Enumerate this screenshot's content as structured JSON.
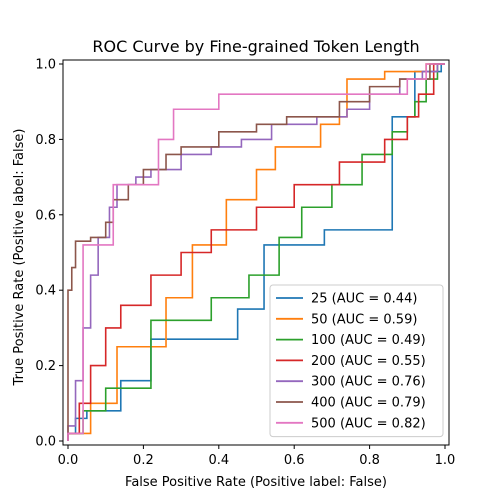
{
  "chart_data": {
    "type": "line",
    "title": "ROC Curve by Fine-grained Token Length",
    "xlabel": "False Positive Rate (Positive label: False)",
    "ylabel": "True Positive Rate (Positive label: False)",
    "xlim": [
      0,
      1
    ],
    "ylim": [
      0,
      1
    ],
    "xticks": [
      "0.0",
      "0.2",
      "0.4",
      "0.6",
      "0.8",
      "1.0"
    ],
    "yticks": [
      "0.0",
      "0.2",
      "0.4",
      "0.6",
      "0.8",
      "1.0"
    ],
    "legend_position": "lower-right",
    "grid": false,
    "series": [
      {
        "name": "25 (AUC = 0.44)",
        "color": "#1f77b4",
        "points": [
          [
            0,
            0
          ],
          [
            0,
            0.02
          ],
          [
            0.02,
            0.02
          ],
          [
            0.02,
            0.06
          ],
          [
            0.05,
            0.06
          ],
          [
            0.05,
            0.08
          ],
          [
            0.14,
            0.08
          ],
          [
            0.14,
            0.16
          ],
          [
            0.22,
            0.16
          ],
          [
            0.22,
            0.27
          ],
          [
            0.45,
            0.27
          ],
          [
            0.45,
            0.35
          ],
          [
            0.52,
            0.35
          ],
          [
            0.52,
            0.52
          ],
          [
            0.68,
            0.52
          ],
          [
            0.68,
            0.56
          ],
          [
            0.86,
            0.56
          ],
          [
            0.86,
            0.86
          ],
          [
            0.92,
            0.86
          ],
          [
            0.92,
            0.98
          ],
          [
            0.99,
            0.98
          ],
          [
            0.99,
            1
          ],
          [
            1,
            1
          ]
        ]
      },
      {
        "name": "50 (AUC = 0.59)",
        "color": "#ff7f0e",
        "points": [
          [
            0,
            0
          ],
          [
            0,
            0.02
          ],
          [
            0.06,
            0.02
          ],
          [
            0.06,
            0.1
          ],
          [
            0.13,
            0.1
          ],
          [
            0.13,
            0.25
          ],
          [
            0.26,
            0.25
          ],
          [
            0.26,
            0.38
          ],
          [
            0.33,
            0.38
          ],
          [
            0.33,
            0.52
          ],
          [
            0.42,
            0.52
          ],
          [
            0.42,
            0.64
          ],
          [
            0.5,
            0.64
          ],
          [
            0.5,
            0.72
          ],
          [
            0.55,
            0.72
          ],
          [
            0.55,
            0.78
          ],
          [
            0.67,
            0.78
          ],
          [
            0.67,
            0.84
          ],
          [
            0.72,
            0.84
          ],
          [
            0.72,
            0.86
          ],
          [
            0.74,
            0.86
          ],
          [
            0.74,
            0.96
          ],
          [
            0.84,
            0.96
          ],
          [
            0.84,
            0.98
          ],
          [
            0.95,
            0.98
          ],
          [
            0.95,
            1
          ],
          [
            1,
            1
          ]
        ]
      },
      {
        "name": "100 (AUC = 0.49)",
        "color": "#2ca02c",
        "points": [
          [
            0,
            0
          ],
          [
            0,
            0.02
          ],
          [
            0.04,
            0.02
          ],
          [
            0.04,
            0.08
          ],
          [
            0.1,
            0.08
          ],
          [
            0.1,
            0.14
          ],
          [
            0.22,
            0.14
          ],
          [
            0.22,
            0.32
          ],
          [
            0.38,
            0.32
          ],
          [
            0.38,
            0.38
          ],
          [
            0.48,
            0.38
          ],
          [
            0.48,
            0.44
          ],
          [
            0.56,
            0.44
          ],
          [
            0.56,
            0.54
          ],
          [
            0.62,
            0.54
          ],
          [
            0.62,
            0.62
          ],
          [
            0.7,
            0.62
          ],
          [
            0.7,
            0.68
          ],
          [
            0.78,
            0.68
          ],
          [
            0.78,
            0.76
          ],
          [
            0.86,
            0.76
          ],
          [
            0.86,
            0.82
          ],
          [
            0.9,
            0.82
          ],
          [
            0.9,
            0.86
          ],
          [
            0.92,
            0.86
          ],
          [
            0.92,
            0.9
          ],
          [
            0.95,
            0.9
          ],
          [
            0.95,
            0.96
          ],
          [
            0.98,
            0.96
          ],
          [
            0.98,
            1
          ],
          [
            1,
            1
          ]
        ]
      },
      {
        "name": "200 (AUC = 0.55)",
        "color": "#d62728",
        "points": [
          [
            0,
            0
          ],
          [
            0,
            0.02
          ],
          [
            0.03,
            0.02
          ],
          [
            0.03,
            0.1
          ],
          [
            0.06,
            0.1
          ],
          [
            0.06,
            0.2
          ],
          [
            0.1,
            0.2
          ],
          [
            0.1,
            0.3
          ],
          [
            0.14,
            0.3
          ],
          [
            0.14,
            0.36
          ],
          [
            0.22,
            0.36
          ],
          [
            0.22,
            0.44
          ],
          [
            0.3,
            0.44
          ],
          [
            0.3,
            0.5
          ],
          [
            0.38,
            0.5
          ],
          [
            0.38,
            0.56
          ],
          [
            0.5,
            0.56
          ],
          [
            0.5,
            0.62
          ],
          [
            0.6,
            0.62
          ],
          [
            0.6,
            0.68
          ],
          [
            0.72,
            0.68
          ],
          [
            0.72,
            0.74
          ],
          [
            0.84,
            0.74
          ],
          [
            0.84,
            0.8
          ],
          [
            0.9,
            0.8
          ],
          [
            0.9,
            0.86
          ],
          [
            0.93,
            0.86
          ],
          [
            0.93,
            0.92
          ],
          [
            0.97,
            0.92
          ],
          [
            0.97,
            1
          ],
          [
            1,
            1
          ]
        ]
      },
      {
        "name": "300 (AUC = 0.76)",
        "color": "#9467bd",
        "points": [
          [
            0,
            0
          ],
          [
            0,
            0.04
          ],
          [
            0.02,
            0.04
          ],
          [
            0.02,
            0.16
          ],
          [
            0.04,
            0.16
          ],
          [
            0.04,
            0.3
          ],
          [
            0.06,
            0.3
          ],
          [
            0.06,
            0.44
          ],
          [
            0.08,
            0.44
          ],
          [
            0.08,
            0.54
          ],
          [
            0.11,
            0.54
          ],
          [
            0.11,
            0.62
          ],
          [
            0.13,
            0.62
          ],
          [
            0.13,
            0.68
          ],
          [
            0.18,
            0.68
          ],
          [
            0.18,
            0.7
          ],
          [
            0.22,
            0.7
          ],
          [
            0.22,
            0.72
          ],
          [
            0.3,
            0.72
          ],
          [
            0.3,
            0.76
          ],
          [
            0.38,
            0.76
          ],
          [
            0.38,
            0.78
          ],
          [
            0.46,
            0.78
          ],
          [
            0.46,
            0.8
          ],
          [
            0.54,
            0.8
          ],
          [
            0.54,
            0.84
          ],
          [
            0.66,
            0.84
          ],
          [
            0.66,
            0.86
          ],
          [
            0.74,
            0.86
          ],
          [
            0.74,
            0.88
          ],
          [
            0.8,
            0.88
          ],
          [
            0.8,
            0.92
          ],
          [
            0.88,
            0.92
          ],
          [
            0.88,
            0.96
          ],
          [
            0.94,
            0.96
          ],
          [
            0.94,
            0.98
          ],
          [
            0.98,
            0.98
          ],
          [
            0.98,
            1
          ],
          [
            1,
            1
          ]
        ]
      },
      {
        "name": "400 (AUC = 0.79)",
        "color": "#8c564b",
        "points": [
          [
            0,
            0
          ],
          [
            0,
            0.4
          ],
          [
            0.01,
            0.4
          ],
          [
            0.01,
            0.46
          ],
          [
            0.02,
            0.46
          ],
          [
            0.02,
            0.53
          ],
          [
            0.06,
            0.53
          ],
          [
            0.06,
            0.54
          ],
          [
            0.1,
            0.54
          ],
          [
            0.1,
            0.58
          ],
          [
            0.12,
            0.58
          ],
          [
            0.12,
            0.64
          ],
          [
            0.16,
            0.64
          ],
          [
            0.16,
            0.68
          ],
          [
            0.2,
            0.68
          ],
          [
            0.2,
            0.72
          ],
          [
            0.26,
            0.72
          ],
          [
            0.26,
            0.76
          ],
          [
            0.3,
            0.76
          ],
          [
            0.3,
            0.78
          ],
          [
            0.4,
            0.78
          ],
          [
            0.4,
            0.82
          ],
          [
            0.5,
            0.82
          ],
          [
            0.5,
            0.84
          ],
          [
            0.58,
            0.84
          ],
          [
            0.58,
            0.86
          ],
          [
            0.72,
            0.86
          ],
          [
            0.72,
            0.9
          ],
          [
            0.8,
            0.9
          ],
          [
            0.8,
            0.94
          ],
          [
            0.88,
            0.94
          ],
          [
            0.88,
            0.96
          ],
          [
            0.96,
            0.96
          ],
          [
            0.96,
            1
          ],
          [
            1,
            1
          ]
        ]
      },
      {
        "name": "500 (AUC = 0.82)",
        "color": "#e377c2",
        "points": [
          [
            0,
            0
          ],
          [
            0,
            0.02
          ],
          [
            0.04,
            0.02
          ],
          [
            0.04,
            0.52
          ],
          [
            0.12,
            0.52
          ],
          [
            0.12,
            0.68
          ],
          [
            0.24,
            0.68
          ],
          [
            0.24,
            0.8
          ],
          [
            0.28,
            0.8
          ],
          [
            0.28,
            0.88
          ],
          [
            0.4,
            0.88
          ],
          [
            0.4,
            0.92
          ],
          [
            0.9,
            0.92
          ],
          [
            0.9,
            0.96
          ],
          [
            0.95,
            0.96
          ],
          [
            0.95,
            1
          ],
          [
            1,
            1
          ]
        ]
      }
    ]
  }
}
